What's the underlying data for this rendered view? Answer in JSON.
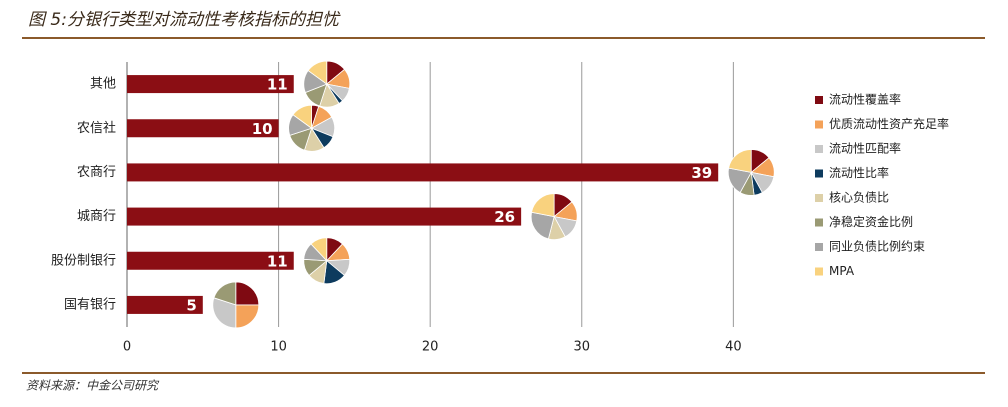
{
  "chart_data": {
    "type": "bar",
    "title": "图 5:分银行类型对流动性考核指标的担忧",
    "source": "资料来源：中金公司研究",
    "categories": [
      "其他",
      "农信社",
      "农商行",
      "城商行",
      "股份制银行",
      "国有银行"
    ],
    "values": [
      11,
      10,
      39,
      26,
      11,
      5
    ],
    "color": "#8b0e14",
    "xlim": [
      0,
      44
    ],
    "xticks": [
      0,
      10,
      20,
      30,
      40
    ],
    "grid": true,
    "pie_series": [
      {
        "name": "流动性覆盖率",
        "color": "#7f0a12",
        "values": [
          14,
          5,
          14,
          14,
          12,
          25
        ]
      },
      {
        "name": "优质流动性资产充足率",
        "color": "#f4a259",
        "values": [
          14,
          12,
          14,
          14,
          12,
          25
        ]
      },
      {
        "name": "流动性匹配率",
        "color": "#c8c8c8",
        "values": [
          10,
          14,
          14,
          14,
          12,
          30
        ]
      },
      {
        "name": "流动性比率",
        "color": "#0d3b5e",
        "values": [
          3,
          10,
          6,
          0,
          16,
          0
        ]
      },
      {
        "name": "核心负债比",
        "color": "#ddd0a8",
        "values": [
          14,
          14,
          0,
          12,
          12,
          0
        ]
      },
      {
        "name": "净稳定资金比例",
        "color": "#9a9a74",
        "values": [
          14,
          15,
          10,
          0,
          12,
          20
        ]
      },
      {
        "name": "同业负债比例约束",
        "color": "#a6a6a6",
        "values": [
          16,
          15,
          20,
          24,
          12,
          0
        ]
      },
      {
        "name": "MPA",
        "color": "#f9d27e",
        "values": [
          15,
          15,
          22,
          22,
          12,
          0
        ]
      }
    ]
  }
}
